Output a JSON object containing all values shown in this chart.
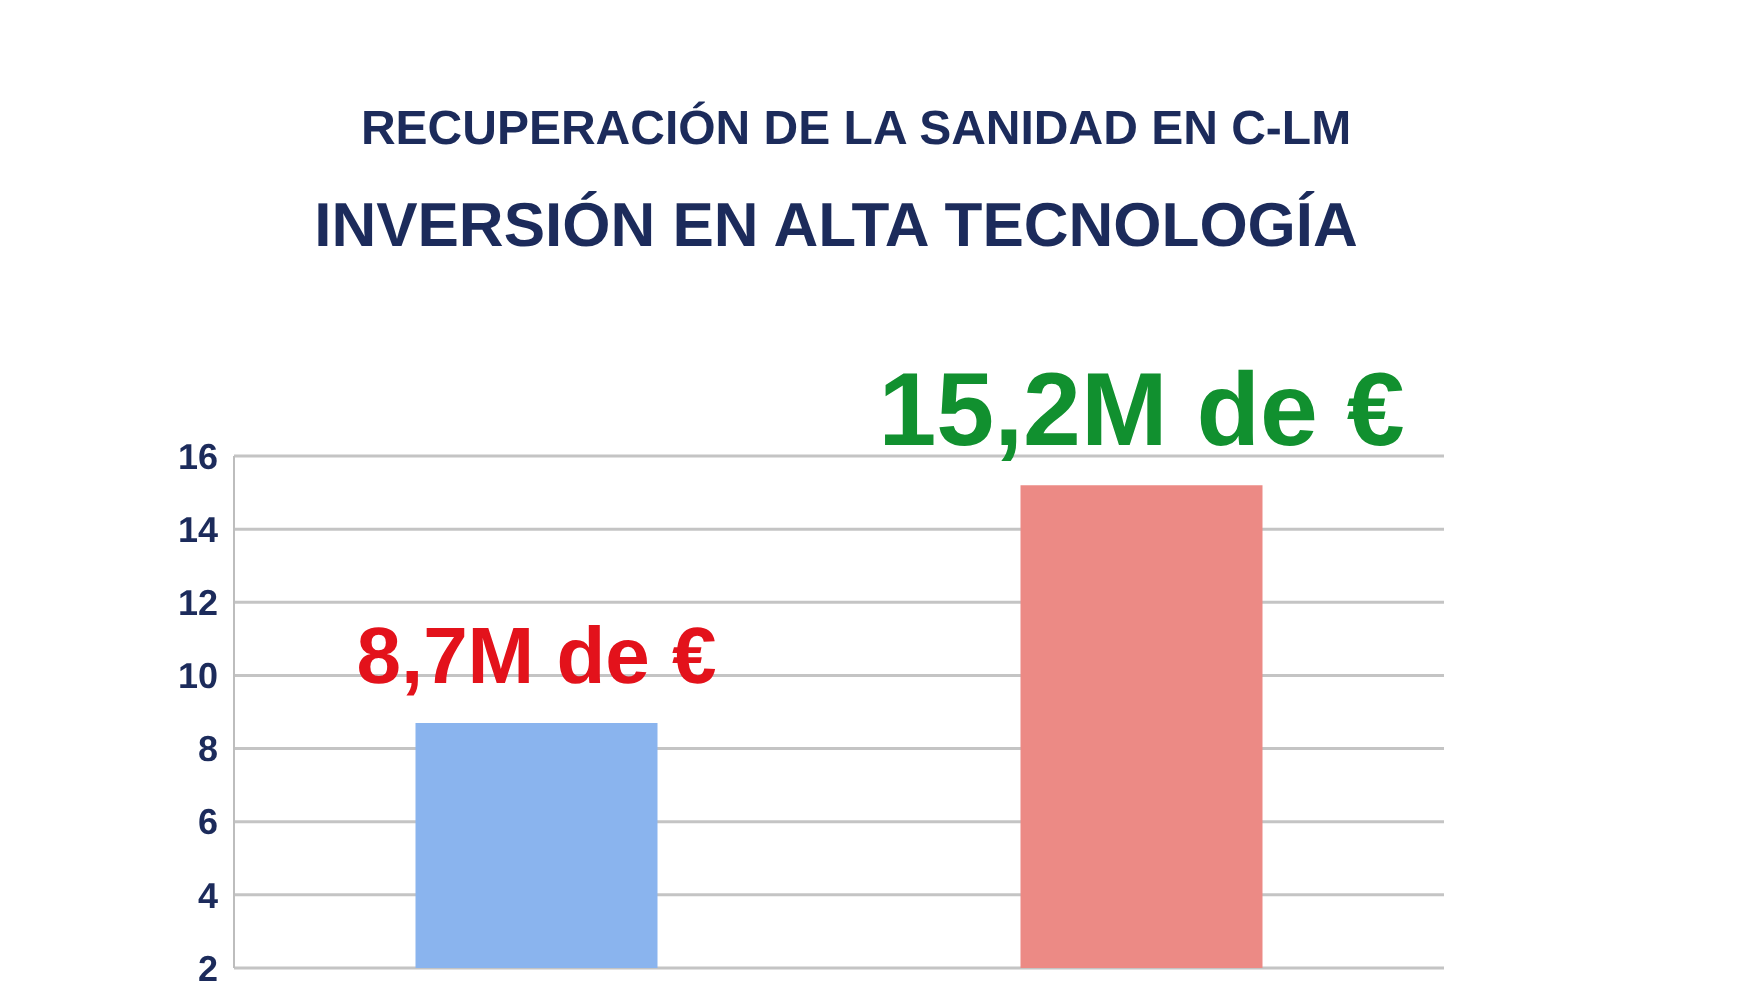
{
  "chart_data": {
    "type": "bar",
    "title": "RECUPERACIÓN DE LA SANIDAD EN C-LM",
    "subtitle": "INVERSIÓN EN ALTA TECNOLOGÍA",
    "categories": [
      null,
      null
    ],
    "values": [
      8.7,
      15.2
    ],
    "colors": [
      "#8ab4ee",
      "#ec8a85"
    ],
    "value_labels": [
      "8,7M de €",
      "15,2M de €"
    ],
    "ylim": [
      2,
      16
    ],
    "yticks": [
      2,
      4,
      6,
      8,
      10,
      12,
      14,
      16
    ],
    "grid": "y"
  }
}
